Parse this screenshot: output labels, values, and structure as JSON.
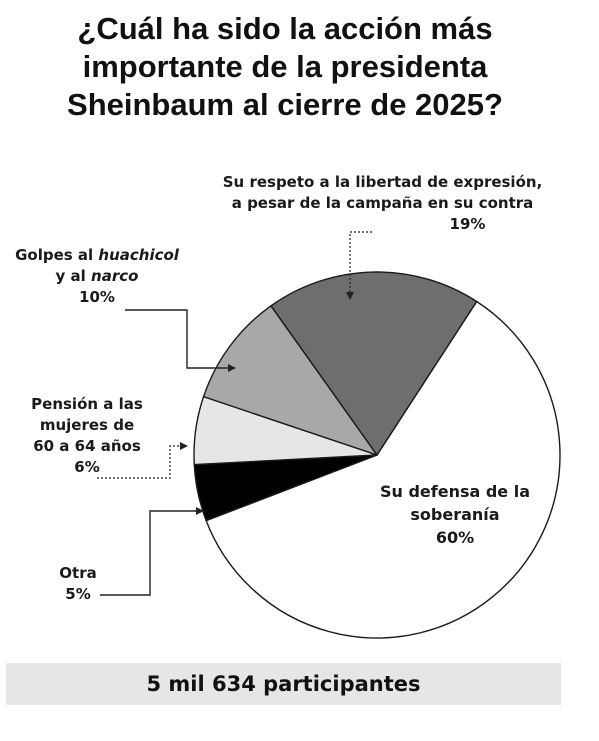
{
  "title_lines": [
    "¿Cuál ha sido la acción más",
    "importante de la presidenta",
    "Sheinbaum al cierre de 2025?"
  ],
  "chart_data": {
    "type": "pie",
    "title": "¿Cuál ha sido la acción más importante de la presidenta Sheinbaum al cierre de 2025?",
    "slices": [
      {
        "label": "Su defensa de la soberanía",
        "value": 60,
        "value_label": "60%",
        "color": "#ffffff"
      },
      {
        "label": "Otra",
        "value": 5,
        "value_label": "5%",
        "color": "#000000"
      },
      {
        "label": "Pensión a las mujeres de 60 a 64 años",
        "value": 6,
        "value_label": "6%",
        "color": "#e6e6e6"
      },
      {
        "label": "Golpes al huachicol y al narco",
        "value": 10,
        "value_label": "10%",
        "color": "#a8a8a8"
      },
      {
        "label": "Su respeto a la libertad de expresión, a pesar de la campaña en su contra",
        "value": 19,
        "value_label": "19%",
        "color": "#6e6e6e"
      }
    ],
    "labels": {
      "libertad": {
        "lines": [
          "Su respeto a la libertad de expresión,",
          "a pesar de la campaña en su contra"
        ],
        "value": "19%"
      },
      "golpes": {
        "line1_a": "Golpes al ",
        "line1_b": "huachicol",
        "line2_a": "y al ",
        "line2_b": "narco",
        "value": "10%"
      },
      "pension": {
        "lines": [
          "Pensión a las",
          "mujeres de",
          "60 a 64 años"
        ],
        "value": "6%"
      },
      "otra": {
        "lines": [
          "Otra"
        ],
        "value": "5%"
      },
      "soberania": {
        "lines": [
          "Su defensa de la",
          "soberanía"
        ],
        "value": "60%"
      }
    },
    "legend": "none"
  },
  "footer": "5 mil 634 participantes"
}
